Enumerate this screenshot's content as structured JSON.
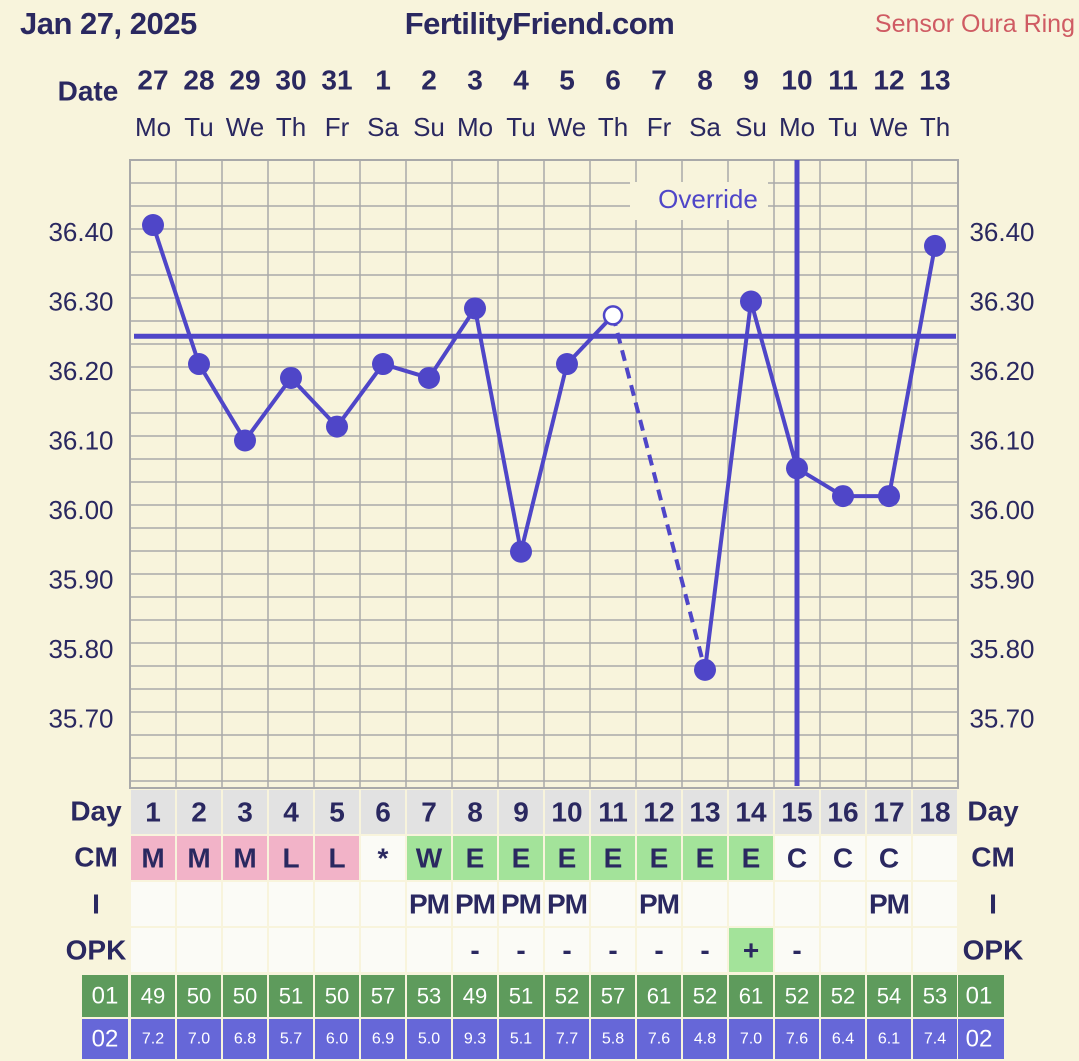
{
  "header": {
    "date": "Jan 27, 2025",
    "site": "FertilityFriend.com",
    "sensor": "Sensor Oura Ring"
  },
  "colors": {
    "background": "#f8f4dc",
    "line": "#4f46c8",
    "text": "#2a2860",
    "grid": "#a9a9a9",
    "cm_menstrual": "#f2b3c8",
    "cm_fertile": "#a3e39a",
    "opk_positive": "#a3e39a",
    "row01": "#5e9b5c",
    "row02": "#6667d8",
    "sensor": "#cf5b63"
  },
  "chart_data": {
    "type": "line",
    "row_labels": {
      "date": "Date",
      "day": "Day",
      "cm": "CM",
      "i": "I",
      "opk": "OPK",
      "r01": "01",
      "r02": "02"
    },
    "dates": [
      "27",
      "28",
      "29",
      "30",
      "31",
      "1",
      "2",
      "3",
      "4",
      "5",
      "6",
      "7",
      "8",
      "9",
      "10",
      "11",
      "12",
      "13"
    ],
    "weekdays": [
      "Mo",
      "Tu",
      "We",
      "Th",
      "Fr",
      "Sa",
      "Su",
      "Mo",
      "Tu",
      "We",
      "Th",
      "Fr",
      "Sa",
      "Su",
      "Mo",
      "Tu",
      "We",
      "Th"
    ],
    "cycle_days": [
      "1",
      "2",
      "3",
      "4",
      "5",
      "6",
      "7",
      "8",
      "9",
      "10",
      "11",
      "12",
      "13",
      "14",
      "15",
      "16",
      "17",
      "18"
    ],
    "temps": [
      36.41,
      36.21,
      36.1,
      36.19,
      36.12,
      36.21,
      36.19,
      36.29,
      35.94,
      36.21,
      36.28,
      null,
      35.77,
      36.3,
      36.06,
      36.02,
      36.02,
      36.38
    ],
    "open_point_index": 10,
    "dashed_segment": [
      10,
      12
    ],
    "coverline": 36.25,
    "ovulation_day_index": 14,
    "override_label": "Override",
    "y_ticks": [
      "36.40",
      "36.30",
      "36.20",
      "36.10",
      "36.00",
      "35.90",
      "35.80",
      "35.70"
    ],
    "ylim": [
      35.63,
      36.5
    ],
    "cm": [
      "M",
      "M",
      "M",
      "L",
      "L",
      "*",
      "W",
      "E",
      "E",
      "E",
      "E",
      "E",
      "E",
      "E",
      "C",
      "C",
      "C",
      ""
    ],
    "intercourse": [
      "",
      "",
      "",
      "",
      "",
      "",
      "PM",
      "PM",
      "PM",
      "PM",
      "",
      "PM",
      "",
      "",
      "",
      "",
      "PM",
      ""
    ],
    "opk": [
      "",
      "",
      "",
      "",
      "",
      "",
      "",
      "-",
      "-",
      "-",
      "-",
      "-",
      "-",
      "+",
      "-",
      "",
      "",
      ""
    ],
    "row01_values": [
      "49",
      "50",
      "50",
      "51",
      "50",
      "57",
      "53",
      "49",
      "51",
      "52",
      "57",
      "61",
      "52",
      "61",
      "52",
      "52",
      "54",
      "53"
    ],
    "row02_values": [
      "7.2",
      "7.0",
      "6.8",
      "5.7",
      "6.0",
      "6.9",
      "5.0",
      "9.3",
      "5.1",
      "7.7",
      "5.8",
      "7.6",
      "4.8",
      "7.0",
      "7.6",
      "6.4",
      "6.1",
      "7.4"
    ]
  }
}
